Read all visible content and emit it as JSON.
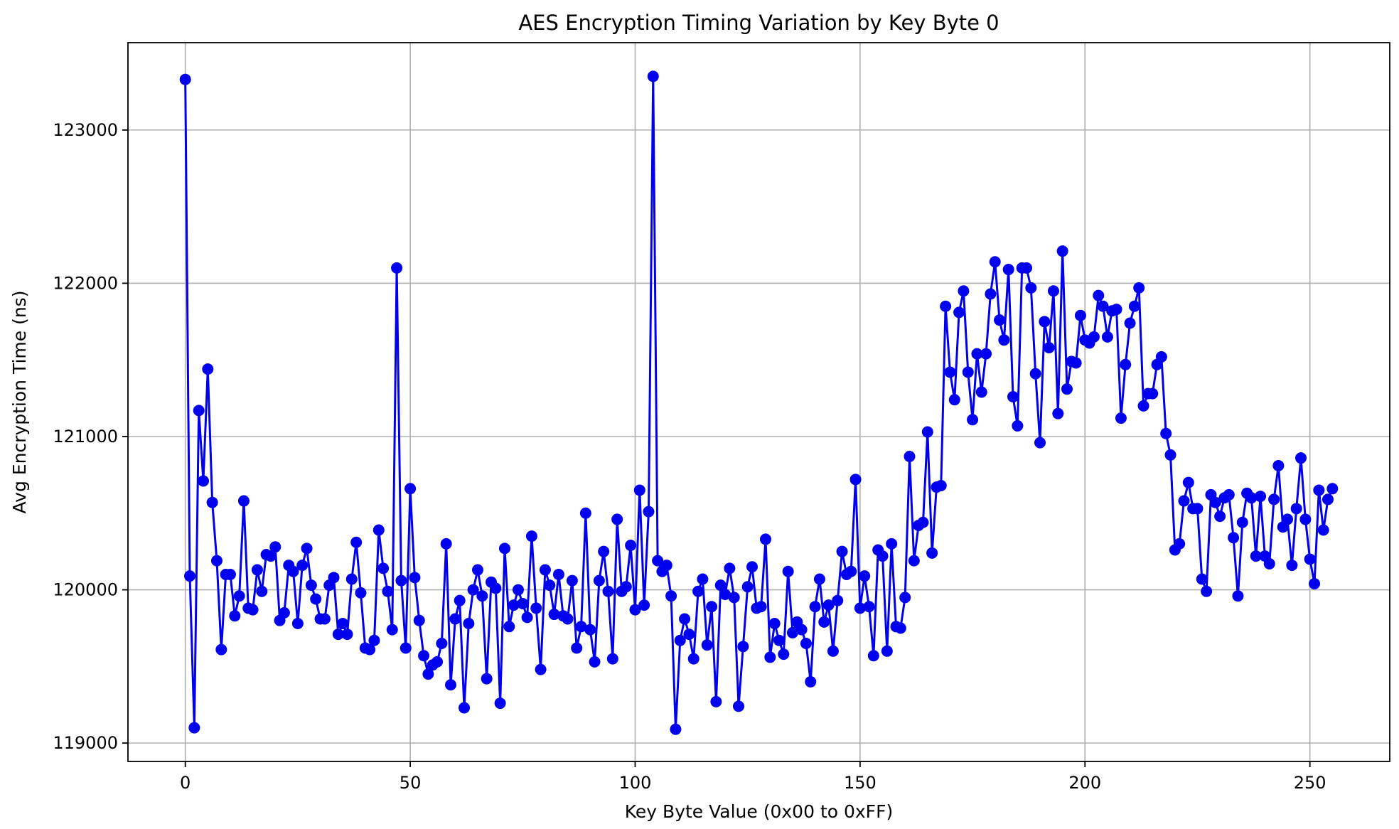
{
  "chart_data": {
    "type": "line",
    "title": "AES Encryption Timing Variation by Key Byte 0",
    "xlabel": "Key Byte Value (0x00 to 0xFF)",
    "ylabel": "Avg Encryption Time (ns)",
    "xlim": [
      -12.75,
      267.75
    ],
    "ylim": [
      118880,
      123570
    ],
    "xticks": [
      0,
      50,
      100,
      150,
      200,
      250
    ],
    "yticks": [
      119000,
      120000,
      121000,
      122000,
      123000
    ],
    "grid": true,
    "series": [
      {
        "color": "#0000ee",
        "marker": "circle",
        "x": [
          0,
          1,
          2,
          3,
          4,
          5,
          6,
          7,
          8,
          9,
          10,
          11,
          12,
          13,
          14,
          15,
          16,
          17,
          18,
          19,
          20,
          21,
          22,
          23,
          24,
          25,
          26,
          27,
          28,
          29,
          30,
          31,
          32,
          33,
          34,
          35,
          36,
          37,
          38,
          39,
          40,
          41,
          42,
          43,
          44,
          45,
          46,
          47,
          48,
          49,
          50,
          51,
          52,
          53,
          54,
          55,
          56,
          57,
          58,
          59,
          60,
          61,
          62,
          63,
          64,
          65,
          66,
          67,
          68,
          69,
          70,
          71,
          72,
          73,
          74,
          75,
          76,
          77,
          78,
          79,
          80,
          81,
          82,
          83,
          84,
          85,
          86,
          87,
          88,
          89,
          90,
          91,
          92,
          93,
          94,
          95,
          96,
          97,
          98,
          99,
          100,
          101,
          102,
          103,
          104,
          105,
          106,
          107,
          108,
          109,
          110,
          111,
          112,
          113,
          114,
          115,
          116,
          117,
          118,
          119,
          120,
          121,
          122,
          123,
          124,
          125,
          126,
          127,
          128,
          129,
          130,
          131,
          132,
          133,
          134,
          135,
          136,
          137,
          138,
          139,
          140,
          141,
          142,
          143,
          144,
          145,
          146,
          147,
          148,
          149,
          150,
          151,
          152,
          153,
          154,
          155,
          156,
          157,
          158,
          159,
          160,
          161,
          162,
          163,
          164,
          165,
          166,
          167,
          168,
          169,
          170,
          171,
          172,
          173,
          174,
          175,
          176,
          177,
          178,
          179,
          180,
          181,
          182,
          183,
          184,
          185,
          186,
          187,
          188,
          189,
          190,
          191,
          192,
          193,
          194,
          195,
          196,
          197,
          198,
          199,
          200,
          201,
          202,
          203,
          204,
          205,
          206,
          207,
          208,
          209,
          210,
          211,
          212,
          213,
          214,
          215,
          216,
          217,
          218,
          219,
          220,
          221,
          222,
          223,
          224,
          225,
          226,
          227,
          228,
          229,
          230,
          231,
          232,
          233,
          234,
          235,
          236,
          237,
          238,
          239,
          240,
          241,
          242,
          243,
          244,
          245,
          246,
          247,
          248,
          249,
          250,
          251,
          252,
          253,
          254,
          255
        ],
        "values": [
          123330,
          120090,
          119100,
          121170,
          120710,
          121440,
          120570,
          120190,
          119610,
          120100,
          120100,
          119830,
          119960,
          120580,
          119880,
          119870,
          120130,
          119990,
          120230,
          120220,
          120280,
          119800,
          119850,
          120160,
          120120,
          119780,
          120160,
          120270,
          120030,
          119940,
          119810,
          119810,
          120030,
          120080,
          119710,
          119780,
          119710,
          120070,
          120310,
          119980,
          119620,
          119610,
          119670,
          120390,
          120140,
          119990,
          119740,
          122100,
          120060,
          119620,
          120660,
          120080,
          119800,
          119570,
          119450,
          119510,
          119530,
          119650,
          120300,
          119380,
          119810,
          119930,
          119230,
          119780,
          120000,
          120130,
          119960,
          119420,
          120050,
          120010,
          119260,
          120270,
          119760,
          119900,
          120000,
          119910,
          119820,
          120350,
          119880,
          119480,
          120130,
          120030,
          119840,
          120100,
          119830,
          119810,
          120060,
          119620,
          119760,
          120500,
          119740,
          119530,
          120060,
          120250,
          119990,
          119550,
          120460,
          119990,
          120020,
          120290,
          119870,
          120650,
          119900,
          120510,
          123350,
          120190,
          120120,
          120160,
          119960,
          119090,
          119670,
          119810,
          119710,
          119550,
          119990,
          120070,
          119640,
          119890,
          119270,
          120030,
          119970,
          120140,
          119950,
          119240,
          119630,
          120020,
          120150,
          119880,
          119890,
          120330,
          119560,
          119780,
          119670,
          119580,
          120120,
          119720,
          119790,
          119740,
          119650,
          119400,
          119890,
          120070,
          119790,
          119900,
          119600,
          119930,
          120250,
          120100,
          120120,
          120720,
          119880,
          120090,
          119890,
          119570,
          120260,
          120220,
          119600,
          120300,
          119760,
          119750,
          119950,
          120870,
          120190,
          120420,
          120440,
          121030,
          120240,
          120670,
          120680,
          121850,
          121420,
          121240,
          121810,
          121950,
          121420,
          121110,
          121540,
          121290,
          121540,
          121930,
          122140,
          121760,
          121630,
          122090,
          121260,
          121070,
          122100,
          122100,
          121970,
          121410,
          120960,
          121750,
          121580,
          121950,
          121150,
          122210,
          121310,
          121490,
          121480,
          121790,
          121630,
          121610,
          121650,
          121920,
          121850,
          121650,
          121820,
          121830,
          121120,
          121470,
          121740,
          121850,
          121970,
          121200,
          121280,
          121280,
          121470,
          121520,
          121020,
          120880,
          120260,
          120300,
          120580,
          120700,
          120530,
          120530,
          120070,
          119990,
          120620,
          120570,
          120480,
          120600,
          120620,
          120340,
          119960,
          120440,
          120630,
          120600,
          120220,
          120610,
          120220,
          120170,
          120590,
          120810,
          120410,
          120460,
          120160,
          120530,
          120860,
          120460,
          120200,
          120040,
          120650,
          120390,
          120590,
          120660
        ]
      }
    ]
  }
}
